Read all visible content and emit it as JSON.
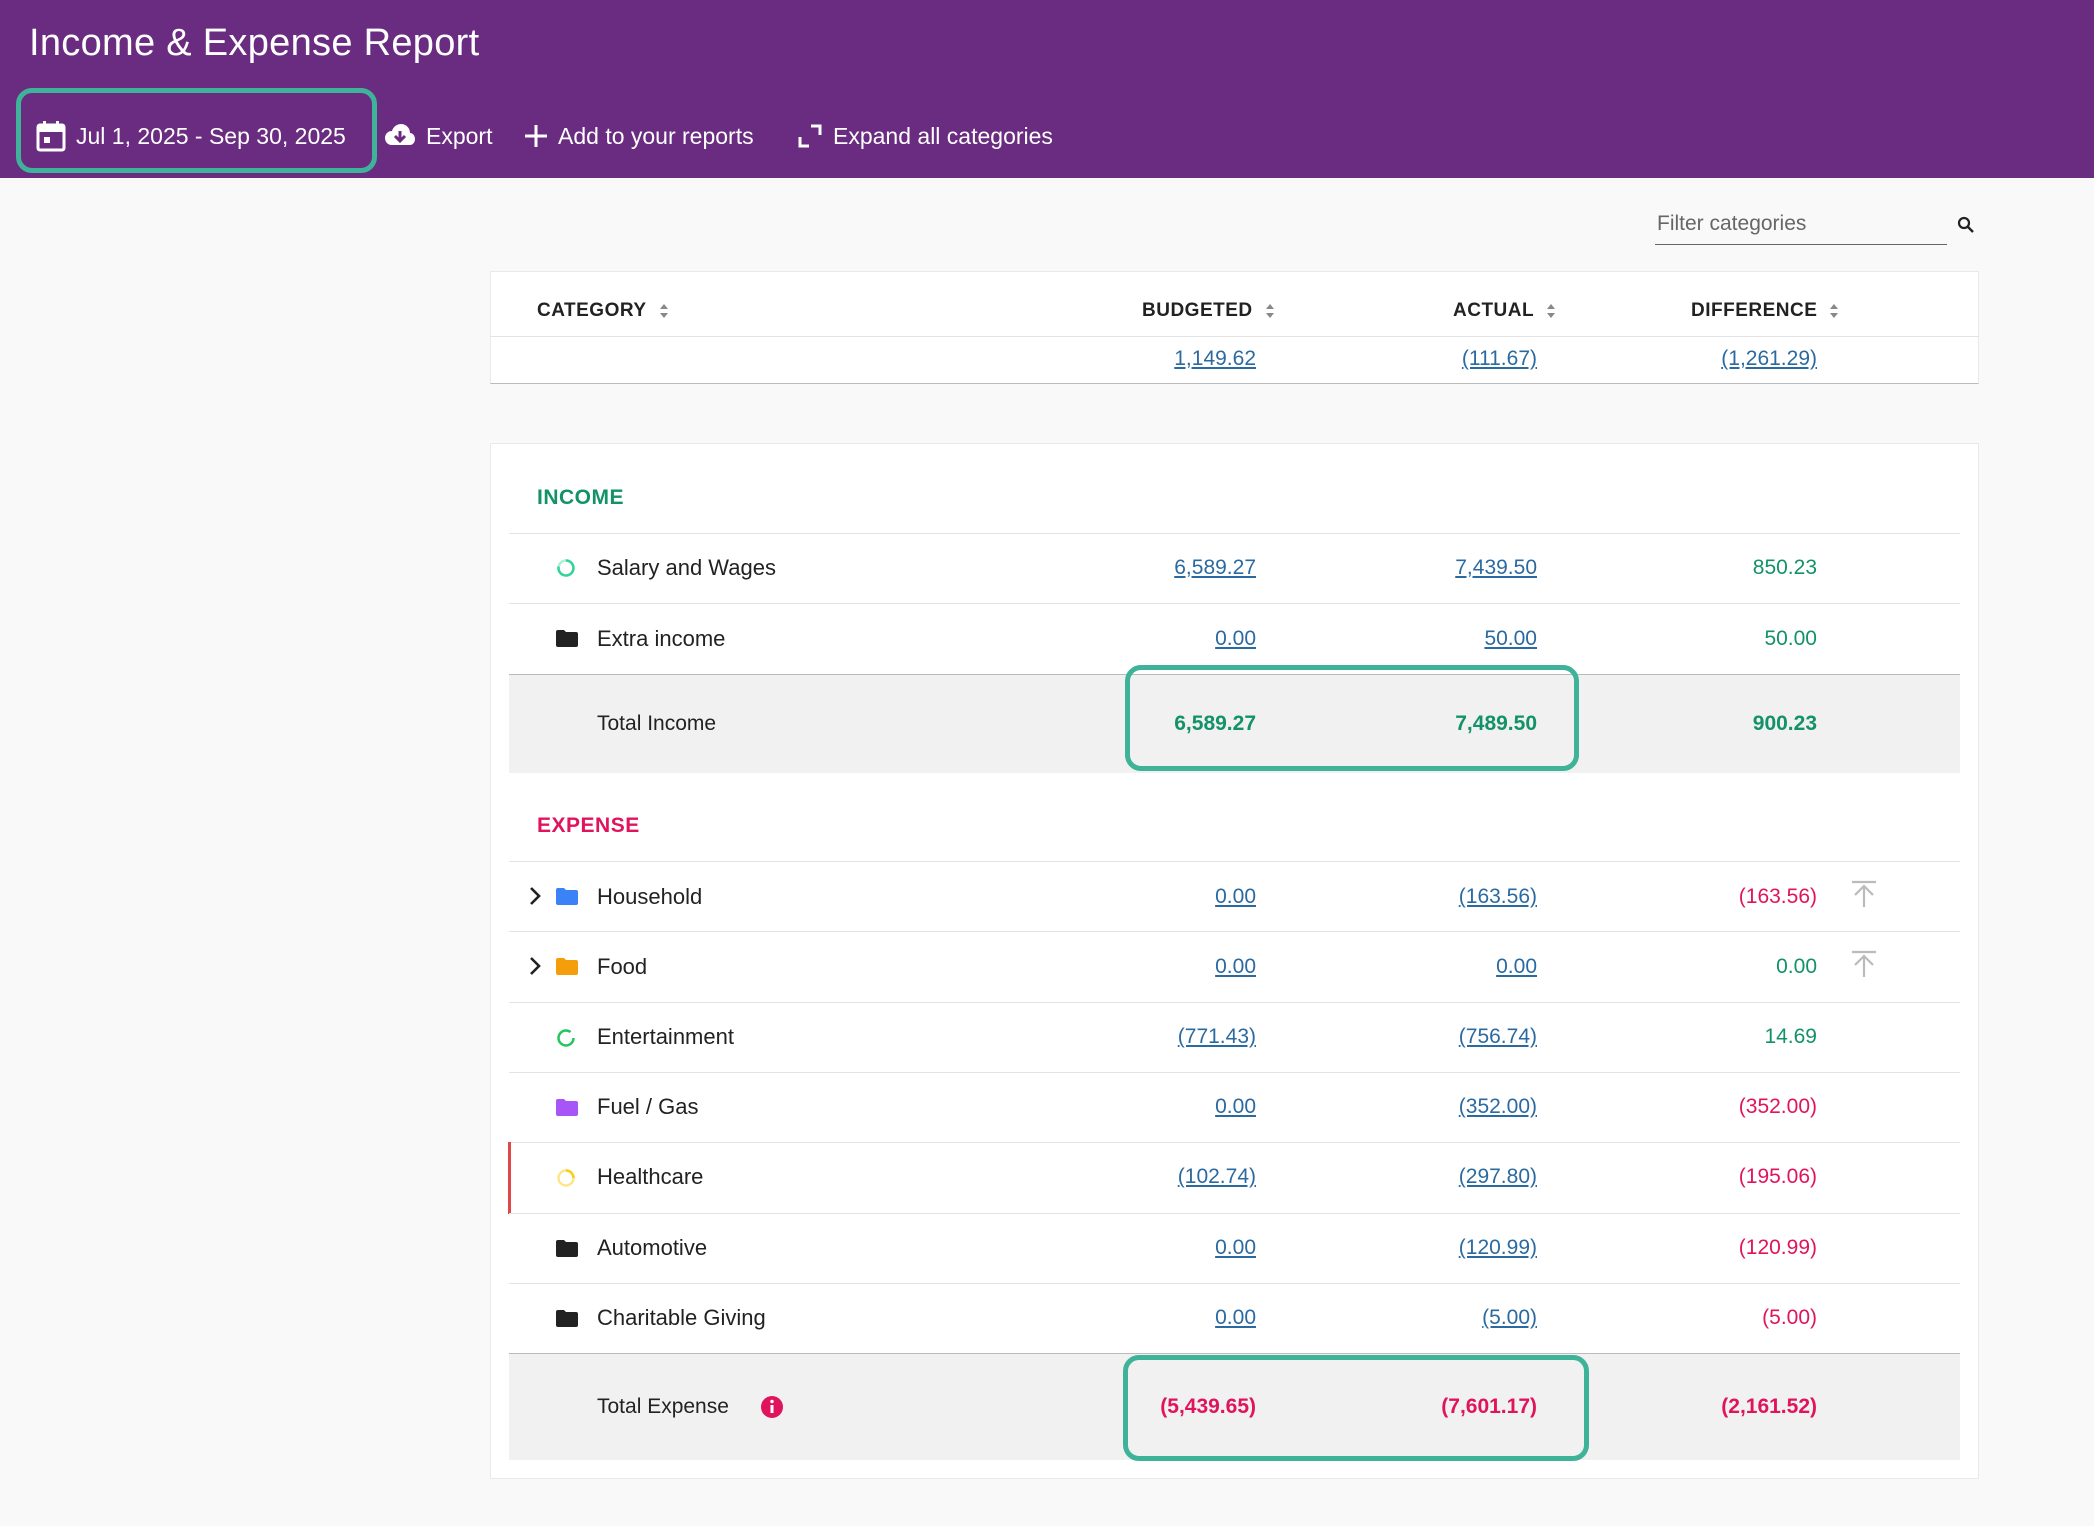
{
  "header": {
    "title": "Income & Expense Report",
    "date_range": "Jul 1, 2025 - Sep 30, 2025",
    "export_label": "Export",
    "add_reports_label": "Add to your reports",
    "expand_label": "Expand all categories"
  },
  "filter": {
    "placeholder": "Filter categories"
  },
  "columns": {
    "category": "CATEGORY",
    "budgeted": "BUDGETED",
    "actual": "ACTUAL",
    "difference": "DIFFERENCE"
  },
  "summary": {
    "budgeted": "1,149.62",
    "actual": "(111.67)",
    "difference": "(1,261.29)"
  },
  "income": {
    "title": "INCOME",
    "rows": [
      {
        "name": "Salary and Wages",
        "icon": "circle-progress-icon",
        "budgeted": "6,589.27",
        "actual": "7,439.50",
        "difference": "850.23"
      },
      {
        "name": "Extra income",
        "icon": "folder-icon",
        "budgeted": "0.00",
        "actual": "50.00",
        "difference": "50.00"
      }
    ],
    "total": {
      "label": "Total Income",
      "budgeted": "6,589.27",
      "actual": "7,489.50",
      "difference": "900.23"
    }
  },
  "expense": {
    "title": "EXPENSE",
    "rows": [
      {
        "name": "Household",
        "icon": "folder-icon",
        "color": "#3b82f6",
        "budgeted": "0.00",
        "actual": "(163.56)",
        "difference": "(163.56)"
      },
      {
        "name": "Food",
        "icon": "folder-icon",
        "color": "#f59e0b",
        "budgeted": "0.00",
        "actual": "0.00",
        "difference": "0.00"
      },
      {
        "name": "Entertainment",
        "icon": "circle-progress-icon",
        "color": "#22c55e",
        "budgeted": "(771.43)",
        "actual": "(756.74)",
        "difference": "14.69"
      },
      {
        "name": "Fuel / Gas",
        "icon": "folder-icon",
        "color": "#a855f7",
        "budgeted": "0.00",
        "actual": "(352.00)",
        "difference": "(352.00)"
      },
      {
        "name": "Healthcare",
        "icon": "circle-progress-icon",
        "color": "#facc15",
        "budgeted": "(102.74)",
        "actual": "(297.80)",
        "difference": "(195.06)"
      },
      {
        "name": "Automotive",
        "icon": "folder-icon",
        "color": "#222222",
        "budgeted": "0.00",
        "actual": "(120.99)",
        "difference": "(120.99)"
      },
      {
        "name": "Charitable Giving",
        "icon": "folder-icon",
        "color": "#222222",
        "budgeted": "0.00",
        "actual": "(5.00)",
        "difference": "(5.00)"
      }
    ],
    "total": {
      "label": "Total Expense",
      "budgeted": "(5,439.65)",
      "actual": "(7,601.17)",
      "difference": "(2,161.52)"
    }
  },
  "colors": {
    "header_bg": "#6a2c80",
    "highlight": "#3fb39a",
    "positive": "#13926a",
    "negative": "#e0145c",
    "link": "#2b6aa0"
  }
}
